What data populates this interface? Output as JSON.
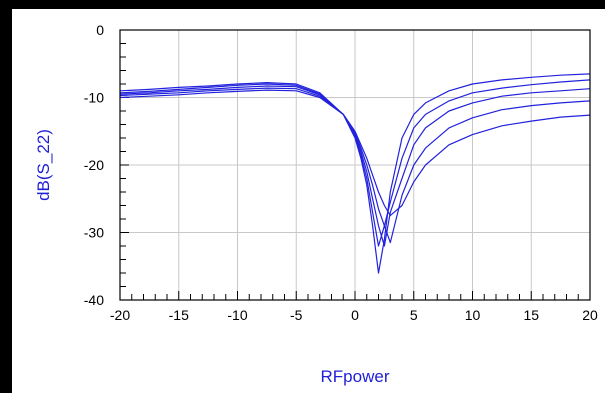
{
  "chart_data": {
    "type": "line",
    "title": "",
    "xlabel": "RFpower",
    "ylabel": "dB(S_22)",
    "xlim": [
      -20,
      20
    ],
    "ylim": [
      -40,
      0
    ],
    "xticks": [
      -20,
      -15,
      -10,
      -5,
      0,
      5,
      10,
      15,
      20
    ],
    "xtick_labels": [
      "-20",
      "-15",
      "-10",
      "-5",
      "0",
      "5",
      "10",
      "15",
      "20"
    ],
    "yticks": [
      0,
      -10,
      -20,
      -30,
      -40
    ],
    "ytick_labels": [
      "0",
      "-10",
      "-20",
      "-30",
      "-40"
    ],
    "grid": true,
    "legend": "none",
    "line_color": "#2222dd",
    "series": [
      {
        "x": [
          -20,
          -17.5,
          -15,
          -12.5,
          -10,
          -7.5,
          -5,
          -3,
          -1,
          0,
          0.5,
          1,
          1.5,
          2,
          2.5,
          3,
          4,
          5,
          6,
          8,
          10,
          12.5,
          15,
          17.5,
          20
        ],
        "values": [
          -9.0,
          -8.8,
          -8.5,
          -8.3,
          -8.0,
          -7.8,
          -8.0,
          -9.3,
          -12.5,
          -16.0,
          -19.0,
          -23.0,
          -29.0,
          -36.0,
          -31.0,
          -24.0,
          -16.0,
          -12.5,
          -10.8,
          -9.0,
          -8.0,
          -7.4,
          -7.0,
          -6.7,
          -6.5
        ]
      },
      {
        "x": [
          -20,
          -17.5,
          -15,
          -12.5,
          -10,
          -7.5,
          -5,
          -3,
          -1,
          0,
          0.5,
          1,
          1.5,
          2,
          2.5,
          3,
          4,
          5,
          6,
          8,
          10,
          12.5,
          15,
          17.5,
          20
        ],
        "values": [
          -9.3,
          -9.1,
          -8.8,
          -8.5,
          -8.2,
          -8.0,
          -8.2,
          -9.5,
          -12.5,
          -15.8,
          -18.5,
          -22.0,
          -27.0,
          -32.0,
          -29.0,
          -25.5,
          -19.0,
          -14.5,
          -12.5,
          -10.5,
          -9.3,
          -8.6,
          -8.1,
          -7.7,
          -7.4
        ]
      },
      {
        "x": [
          -20,
          -17.5,
          -15,
          -12.5,
          -10,
          -7.5,
          -5,
          -3,
          -1,
          0,
          0.5,
          1,
          1.5,
          2,
          2.5,
          3,
          4,
          5,
          6,
          8,
          10,
          12.5,
          15,
          17.5,
          20
        ],
        "values": [
          -9.5,
          -9.3,
          -9.0,
          -8.8,
          -8.5,
          -8.3,
          -8.4,
          -9.6,
          -12.5,
          -15.5,
          -18.0,
          -21.0,
          -25.0,
          -29.0,
          -32.0,
          -27.0,
          -22.0,
          -17.0,
          -14.5,
          -12.0,
          -10.8,
          -9.8,
          -9.3,
          -9.0,
          -8.7
        ]
      },
      {
        "x": [
          -20,
          -17.5,
          -15,
          -12.5,
          -10,
          -7.5,
          -5,
          -3,
          -1,
          0,
          0.5,
          1,
          1.5,
          2,
          2.5,
          3,
          4,
          5,
          6,
          8,
          10,
          12.5,
          15,
          17.5,
          20
        ],
        "values": [
          -9.7,
          -9.5,
          -9.3,
          -9.0,
          -8.8,
          -8.6,
          -8.7,
          -9.8,
          -12.5,
          -15.2,
          -17.5,
          -20.0,
          -23.0,
          -26.5,
          -29.0,
          -31.5,
          -24.5,
          -20.0,
          -17.5,
          -14.5,
          -13.0,
          -11.8,
          -11.2,
          -10.8,
          -10.5
        ]
      },
      {
        "x": [
          -20,
          -17.5,
          -15,
          -12.5,
          -10,
          -7.5,
          -5,
          -3,
          -1,
          0,
          0.5,
          1,
          1.5,
          2,
          2.5,
          3,
          4,
          5,
          6,
          8,
          10,
          12.5,
          15,
          17.5,
          20
        ],
        "values": [
          -10.0,
          -9.8,
          -9.6,
          -9.3,
          -9.1,
          -8.9,
          -9.0,
          -10.0,
          -12.5,
          -15.0,
          -17.0,
          -19.0,
          -21.5,
          -24.0,
          -26.0,
          -27.5,
          -26.0,
          -22.5,
          -20.0,
          -17.0,
          -15.5,
          -14.2,
          -13.5,
          -12.9,
          -12.6
        ]
      }
    ]
  }
}
